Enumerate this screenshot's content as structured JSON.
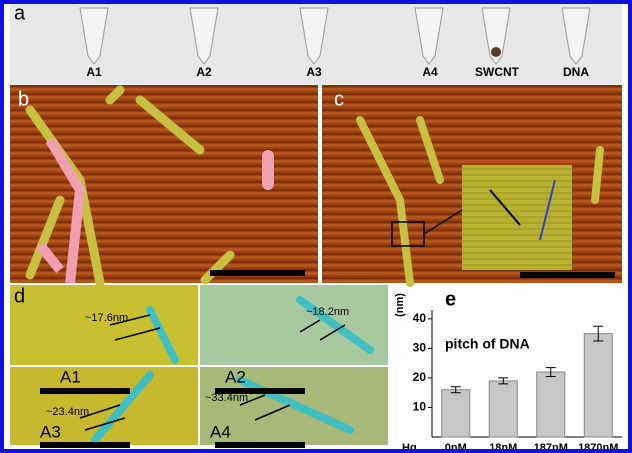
{
  "panels": {
    "a": {
      "letter": "a",
      "labels": [
        "A1",
        "A2",
        "A3",
        "A4",
        "SWCNT",
        "DNA"
      ]
    },
    "b": {
      "letter": "b"
    },
    "c": {
      "letter": "c"
    },
    "d": {
      "letter": "d",
      "images": [
        {
          "label": "A1",
          "annotation": "~17.6nm"
        },
        {
          "label": "A2",
          "annotation": "~18.2nm"
        },
        {
          "label": "A3",
          "annotation": "~23.4nm"
        },
        {
          "label": "A4",
          "annotation": "~33.4nm"
        }
      ]
    }
  },
  "chart_data": {
    "type": "bar",
    "letter": "e",
    "title": "pitch of DNA",
    "y_label": "(nm)",
    "x_label": "Hg",
    "categories": [
      "0nM",
      "18nM",
      "187nM",
      "1870nM"
    ],
    "values": [
      16,
      19,
      22,
      35
    ],
    "errors": [
      1,
      1,
      1.5,
      2.5
    ],
    "color": "#c8c8c8",
    "ylim": [
      0,
      43
    ],
    "yticks": [
      10,
      20,
      30,
      40
    ]
  }
}
